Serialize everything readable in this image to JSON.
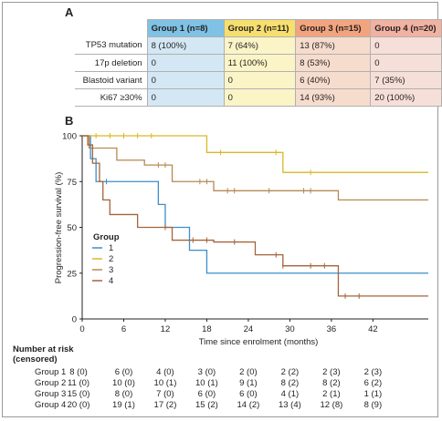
{
  "panel_a_label": "A",
  "panel_b_label": "B",
  "table": {
    "headers": [
      "Group 1 (n=8)",
      "Group 2 (n=11)",
      "Group 3 (n=15)",
      "Group 4 (n=20)"
    ],
    "header_colors": [
      "#7fc2e5",
      "#f6df6f",
      "#f2a47e",
      "#f1b2a1"
    ],
    "rows": [
      {
        "label": "TP53 mutation",
        "values": [
          "8 (100%)",
          "7 (64%)",
          "13 (87%)",
          "0"
        ]
      },
      {
        "label": "17p deletion",
        "values": [
          "0",
          "11 (100%)",
          "8 (53%)",
          "0"
        ]
      },
      {
        "label": "Blastoid variant",
        "values": [
          "0",
          "0",
          "6 (40%)",
          "7 (35%)"
        ]
      },
      {
        "label": "Ki67 ≥30%",
        "values": [
          "0",
          "0",
          "14 (93%)",
          "20 (100%)"
        ]
      }
    ]
  },
  "chart_data": {
    "type": "line",
    "step": true,
    "xlabel": "Time since enrolment (months)",
    "ylabel": "Progression-free survival (%)",
    "xlim": [
      0,
      50
    ],
    "ylim": [
      0,
      100
    ],
    "xticks": [
      "0",
      "6",
      "12",
      "18",
      "24",
      "30",
      "36",
      "42"
    ],
    "yticks": [
      "0",
      "25",
      "50",
      "75",
      "100"
    ],
    "legend_title": "Group",
    "legend_position": "lower-left",
    "series": [
      {
        "name": "1",
        "color": "#3d8ec9",
        "x": [
          0,
          1.2,
          2,
          5,
          11,
          12,
          15.5,
          18,
          50
        ],
        "y": [
          100,
          87.5,
          75,
          75,
          62.5,
          50,
          37.5,
          25,
          25
        ]
      },
      {
        "name": "2",
        "color": "#d9b825",
        "x": [
          0,
          18,
          29,
          50
        ],
        "y": [
          100,
          90.9,
          80,
          80
        ]
      },
      {
        "name": "3",
        "color": "#b58a54",
        "x": [
          0,
          1,
          5,
          7,
          9,
          13,
          19,
          29,
          37,
          50
        ],
        "y": [
          100,
          93.3,
          86.7,
          86.7,
          84,
          75,
          70,
          70,
          65,
          65
        ]
      },
      {
        "name": "4",
        "color": "#a4633b",
        "x": [
          0,
          0.8,
          1.5,
          2.5,
          3,
          4,
          8,
          13,
          19,
          25,
          29,
          37,
          50
        ],
        "y": [
          100,
          95,
          85,
          75,
          65,
          57,
          50,
          43,
          42,
          35,
          29,
          12.5,
          12.5
        ]
      }
    ],
    "censor_marks": [
      {
        "series": "1",
        "x": [
          3.5
        ]
      },
      {
        "series": "2",
        "x": [
          2,
          4,
          6,
          8,
          10,
          20,
          28,
          33
        ]
      },
      {
        "series": "3",
        "x": [
          11,
          12,
          17,
          18,
          21,
          22,
          27,
          32,
          33
        ]
      },
      {
        "series": "4",
        "x": [
          12,
          16,
          18,
          22,
          28,
          29,
          33,
          35,
          38,
          40
        ]
      }
    ]
  },
  "risk_table": {
    "title": "Number at risk\n(censored)",
    "time_points": [
      0,
      6,
      12,
      18,
      24,
      30,
      36,
      42
    ],
    "rows": [
      {
        "group": "Group 1",
        "values": [
          "8 (0)",
          "6 (0)",
          "4 (0)",
          "3 (0)",
          "2 (0)",
          "2 (2)",
          "2 (3)",
          "2 (3)"
        ]
      },
      {
        "group": "Group 2",
        "values": [
          "11 (0)",
          "10 (0)",
          "10 (1)",
          "10 (1)",
          "9 (1)",
          "8 (2)",
          "8 (2)",
          "6 (2)"
        ]
      },
      {
        "group": "Group 3",
        "values": [
          "15 (0)",
          "8 (0)",
          "7 (0)",
          "6 (0)",
          "6 (0)",
          "4 (1)",
          "2 (1)",
          "1 (1)"
        ]
      },
      {
        "group": "Group 4",
        "values": [
          "20 (0)",
          "19 (1)",
          "17 (2)",
          "15 (2)",
          "14 (2)",
          "13 (4)",
          "12 (8)",
          "8 (9)"
        ]
      }
    ]
  }
}
